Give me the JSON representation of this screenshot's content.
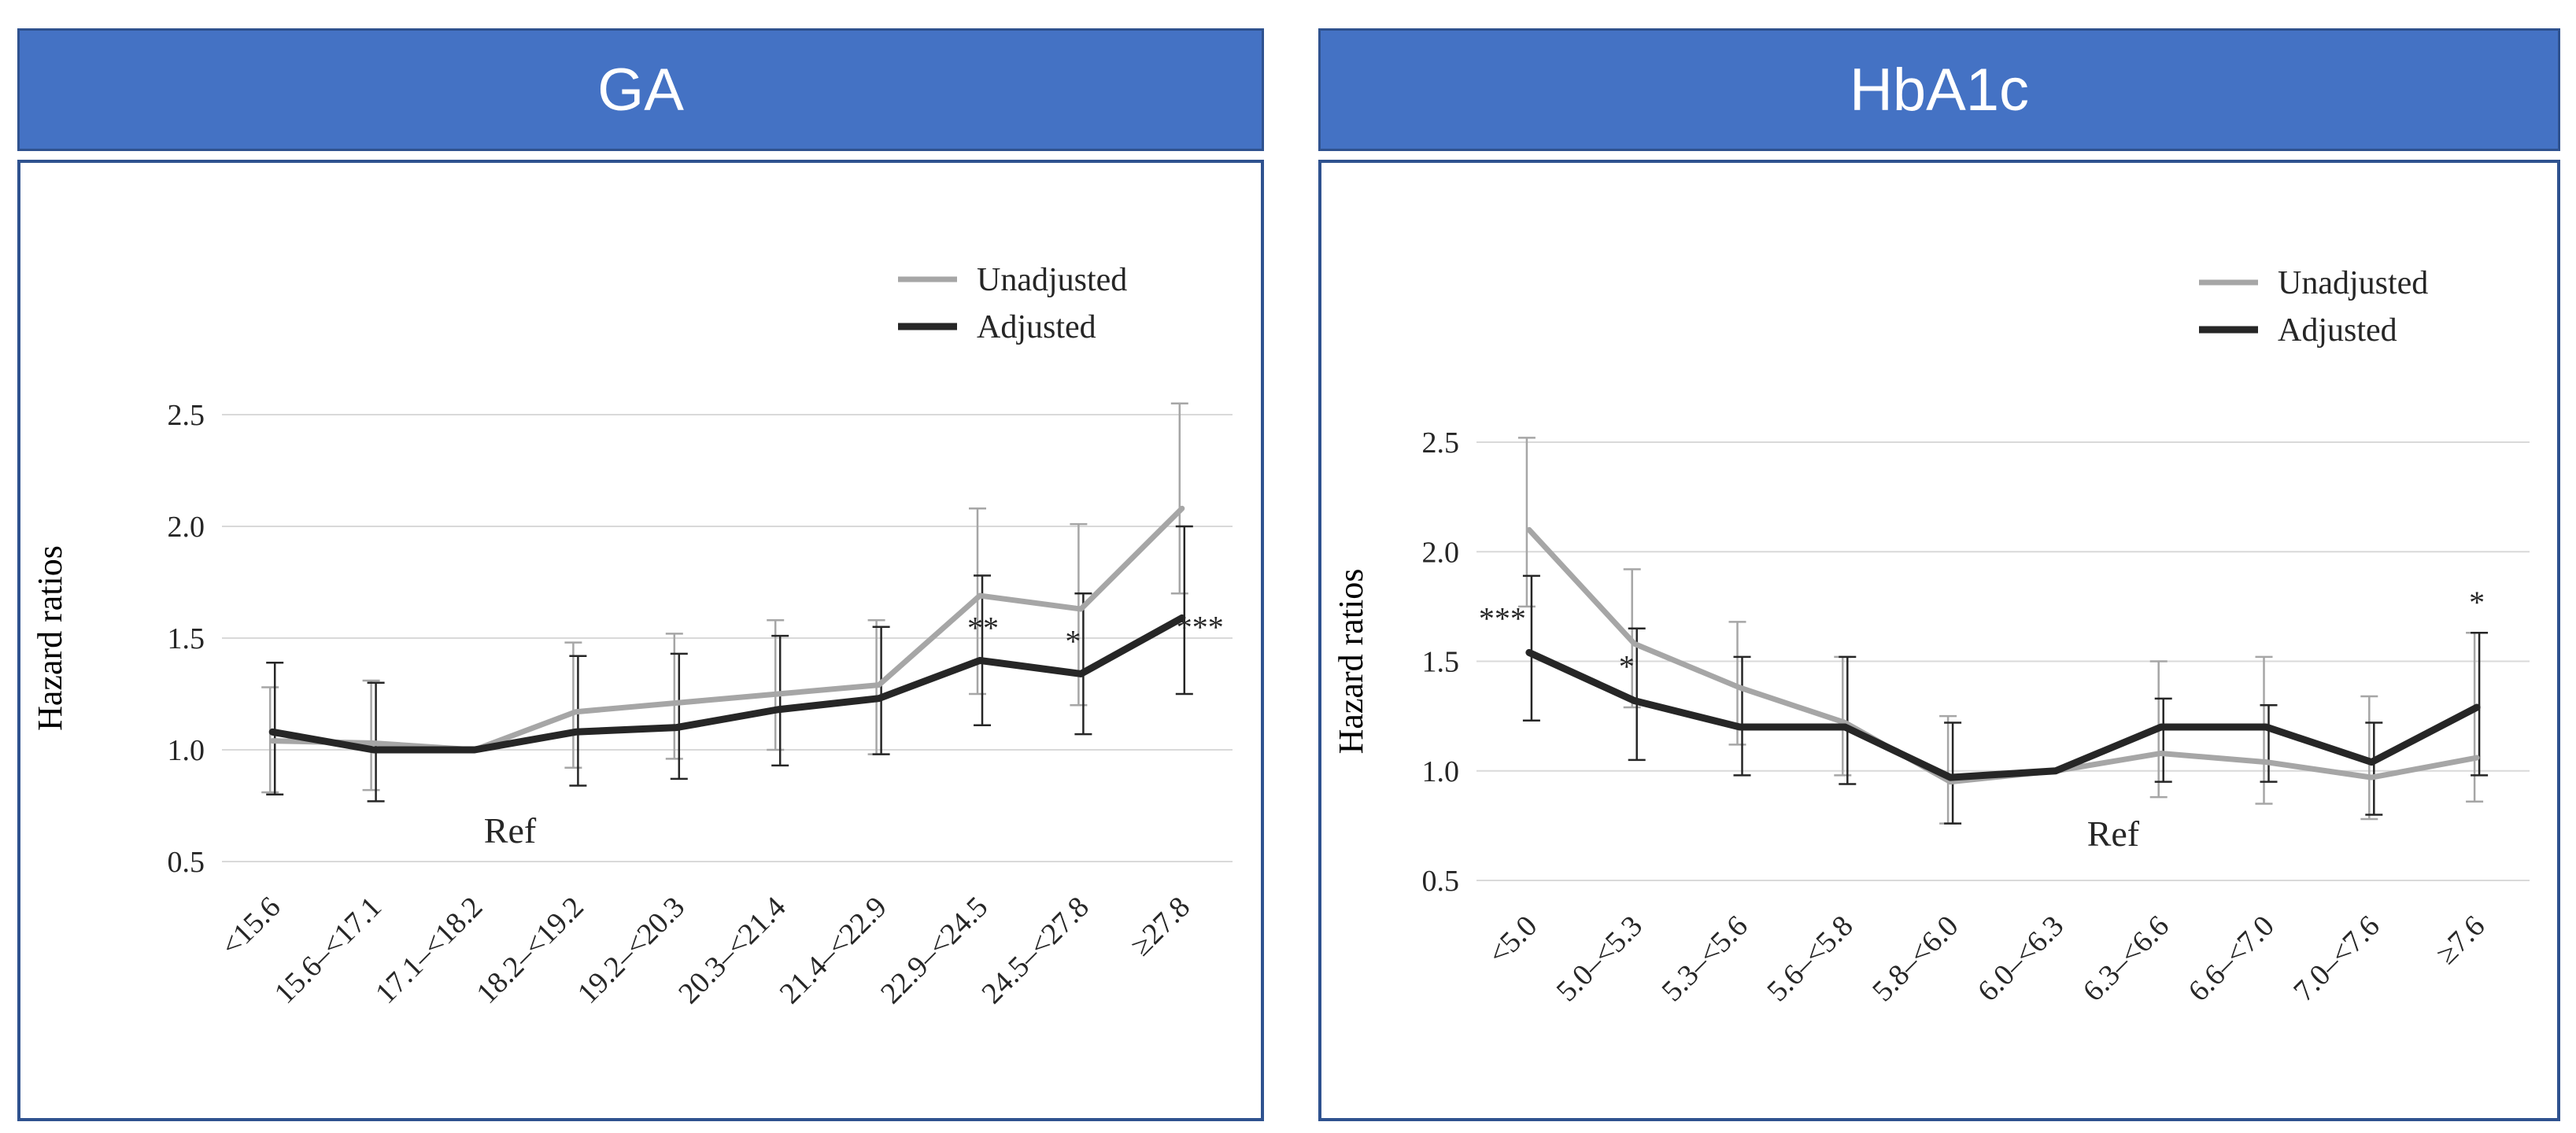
{
  "chart_data": [
    {
      "type": "line",
      "title": "GA",
      "ylabel": "Hazard ratios",
      "xlabel": "",
      "ylim": [
        0.5,
        2.5
      ],
      "yticks": [
        "0.5",
        "1.0",
        "1.5",
        "2.0",
        "2.5"
      ],
      "categories": [
        "<15.6",
        "15.6–<17.1",
        "17.1–<18.2",
        "18.2–<19.2",
        "19.2–<20.3",
        "20.3–<21.4",
        "21.4–<22.9",
        "22.9–<24.5",
        "24.5–<27.8",
        "≥27.8"
      ],
      "grid": true,
      "legend": "top-right",
      "series": [
        {
          "name": "Unadjusted",
          "color": "#a6a6a6",
          "values": [
            1.04,
            1.03,
            1.0,
            1.17,
            1.21,
            1.25,
            1.29,
            1.69,
            1.63,
            2.08
          ],
          "lower": [
            0.81,
            0.82,
            1.0,
            0.92,
            0.96,
            1.0,
            0.98,
            1.25,
            1.2,
            1.7
          ],
          "upper": [
            1.28,
            1.31,
            1.0,
            1.48,
            1.52,
            1.58,
            1.58,
            2.08,
            2.01,
            2.55
          ]
        },
        {
          "name": "Adjusted",
          "color": "#262626",
          "values": [
            1.08,
            1.0,
            1.0,
            1.08,
            1.1,
            1.18,
            1.23,
            1.4,
            1.34,
            1.59
          ],
          "lower": [
            0.8,
            0.77,
            1.0,
            0.84,
            0.87,
            0.93,
            0.98,
            1.11,
            1.07,
            1.25
          ],
          "upper": [
            1.39,
            1.3,
            1.0,
            1.42,
            1.43,
            1.51,
            1.55,
            1.78,
            1.7,
            2.0
          ]
        }
      ],
      "annotations": [
        {
          "text": "Ref",
          "category": "17.1–<18.2"
        },
        {
          "text": "**",
          "category": "22.9–<24.5"
        },
        {
          "text": "*",
          "category": "24.5–<27.8"
        },
        {
          "text": "***",
          "category": "≥27.8"
        }
      ]
    },
    {
      "type": "line",
      "title": "HbA1c",
      "ylabel": "Hazard ratios",
      "xlabel": "",
      "ylim": [
        0.5,
        2.5
      ],
      "yticks": [
        "0.5",
        "1.0",
        "1.5",
        "2.0",
        "2.5"
      ],
      "categories": [
        "<5.0",
        "5.0–<5.3",
        "5.3–<5.6",
        "5.6–<5.8",
        "5.8–<6.0",
        "6.0–<6.3",
        "6.3–<6.6",
        "6.6–<7.0",
        "7.0–<7.6",
        "≥7.6"
      ],
      "grid": true,
      "legend": "top-right",
      "series": [
        {
          "name": "Unadjusted",
          "color": "#a6a6a6",
          "values": [
            2.1,
            1.58,
            1.38,
            1.22,
            0.95,
            1.0,
            1.08,
            1.04,
            0.97,
            1.06
          ],
          "lower": [
            1.75,
            1.29,
            1.12,
            0.98,
            0.76,
            1.0,
            0.88,
            0.85,
            0.78,
            0.86
          ],
          "upper": [
            2.52,
            1.92,
            1.68,
            1.52,
            1.25,
            1.0,
            1.5,
            1.52,
            1.34,
            1.63
          ]
        },
        {
          "name": "Adjusted",
          "color": "#262626",
          "values": [
            1.54,
            1.32,
            1.2,
            1.2,
            0.97,
            1.0,
            1.2,
            1.2,
            1.04,
            1.29
          ],
          "lower": [
            1.23,
            1.05,
            0.98,
            0.94,
            0.76,
            1.0,
            0.95,
            0.95,
            0.8,
            0.98
          ],
          "upper": [
            1.89,
            1.65,
            1.52,
            1.52,
            1.22,
            1.0,
            1.33,
            1.3,
            1.22,
            1.63
          ]
        }
      ],
      "annotations": [
        {
          "text": "***",
          "category": "<5.0"
        },
        {
          "text": "*",
          "category": "5.0–<5.3"
        },
        {
          "text": "Ref",
          "category": "6.0–<6.3"
        },
        {
          "text": "*",
          "category": "≥7.6"
        }
      ]
    }
  ]
}
